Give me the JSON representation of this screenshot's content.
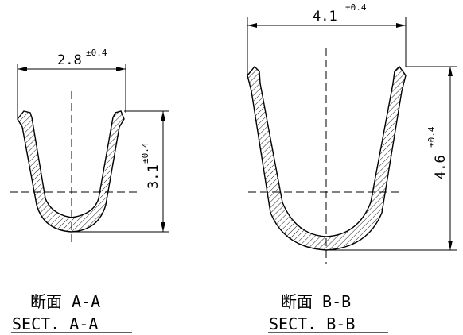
{
  "section_a": {
    "width_value": "2.8",
    "width_tolerance": "±0.4",
    "height_value": "3.1",
    "height_tolerance": "±0.4",
    "caption_jp": "断面 A-A",
    "caption_en": "SECT. A-A"
  },
  "section_b": {
    "width_value": "4.1",
    "width_tolerance": "±0.4",
    "height_value": "4.6",
    "height_tolerance": "±0.4",
    "caption_jp": "断面 B-B",
    "caption_en": "SECT. B-B"
  }
}
